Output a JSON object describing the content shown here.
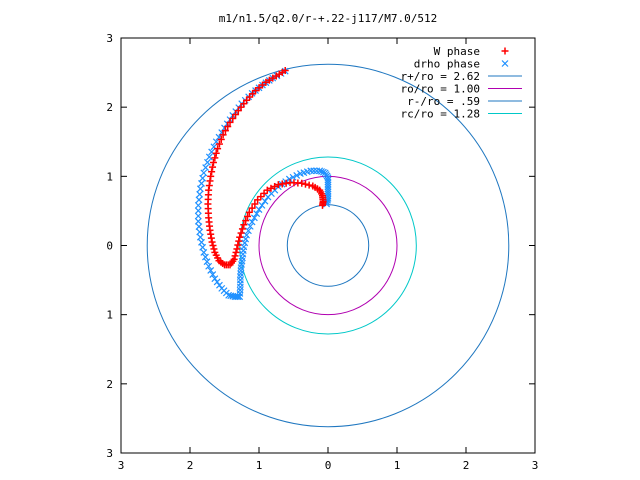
{
  "chart_data": {
    "type": "scatter",
    "title": "m1/n1.5/q2.0/r-+.22-j117/M7.0/512",
    "xlabel": "",
    "ylabel": "",
    "xlim": [
      -3,
      3
    ],
    "ylim": [
      -3,
      3
    ],
    "x_ticks": [
      "3",
      "2",
      "1",
      "0",
      "1",
      "2",
      "3"
    ],
    "y_ticks": [
      "3",
      "2",
      "1",
      "0",
      "1",
      "2",
      "3"
    ],
    "x_tick_values": [
      -3,
      -2,
      -1,
      0,
      1,
      2,
      3
    ],
    "y_tick_values": [
      3,
      2,
      1,
      0,
      -1,
      -2,
      -3
    ],
    "grid": false,
    "legend_position": "top-right",
    "series": [
      {
        "name": "W phase",
        "kind": "points",
        "marker": "plus",
        "color": "#ff0000",
        "points": [
          [
            -0.62,
            2.53
          ],
          [
            -0.75,
            2.45
          ],
          [
            -0.9,
            2.36
          ],
          [
            -1.05,
            2.24
          ],
          [
            -1.18,
            2.1
          ],
          [
            -1.3,
            1.95
          ],
          [
            -1.42,
            1.78
          ],
          [
            -1.52,
            1.6
          ],
          [
            -1.6,
            1.4
          ],
          [
            -1.66,
            1.2
          ],
          [
            -1.7,
            1.0
          ],
          [
            -1.73,
            0.8
          ],
          [
            -1.74,
            0.6
          ],
          [
            -1.73,
            0.4
          ],
          [
            -1.71,
            0.22
          ],
          [
            -1.68,
            0.05
          ],
          [
            -1.64,
            -0.1
          ],
          [
            -1.58,
            -0.22
          ],
          [
            -1.5,
            -0.28
          ],
          [
            -1.42,
            -0.28
          ],
          [
            -1.36,
            -0.2
          ],
          [
            -1.32,
            -0.05
          ],
          [
            -1.28,
            0.12
          ],
          [
            -1.22,
            0.3
          ],
          [
            -1.14,
            0.48
          ],
          [
            -1.02,
            0.66
          ],
          [
            -0.88,
            0.8
          ],
          [
            -0.72,
            0.88
          ],
          [
            -0.55,
            0.91
          ],
          [
            -0.38,
            0.9
          ],
          [
            -0.22,
            0.86
          ],
          [
            -0.12,
            0.8
          ],
          [
            -0.08,
            0.72
          ],
          [
            -0.07,
            0.64
          ],
          [
            -0.08,
            0.58
          ]
        ]
      },
      {
        "name": "drho phase",
        "kind": "points",
        "marker": "cross",
        "color": "#1e90ff",
        "points": [
          [
            -0.62,
            2.52
          ],
          [
            -0.8,
            2.42
          ],
          [
            -0.95,
            2.32
          ],
          [
            -1.1,
            2.2
          ],
          [
            -1.25,
            2.05
          ],
          [
            -1.38,
            1.88
          ],
          [
            -1.5,
            1.7
          ],
          [
            -1.62,
            1.5
          ],
          [
            -1.72,
            1.28
          ],
          [
            -1.8,
            1.05
          ],
          [
            -1.85,
            0.82
          ],
          [
            -1.88,
            0.58
          ],
          [
            -1.88,
            0.35
          ],
          [
            -1.85,
            0.12
          ],
          [
            -1.8,
            -0.1
          ],
          [
            -1.73,
            -0.3
          ],
          [
            -1.64,
            -0.48
          ],
          [
            -1.54,
            -0.62
          ],
          [
            -1.44,
            -0.72
          ],
          [
            -1.35,
            -0.74
          ],
          [
            -1.28,
            -0.74
          ],
          [
            -1.27,
            -0.6
          ],
          [
            -1.27,
            -0.45
          ],
          [
            -1.26,
            -0.32
          ],
          [
            -1.24,
            -0.18
          ],
          [
            -1.22,
            -0.02
          ],
          [
            -1.18,
            0.15
          ],
          [
            -1.1,
            0.34
          ],
          [
            -1.0,
            0.52
          ],
          [
            -0.87,
            0.7
          ],
          [
            -0.72,
            0.85
          ],
          [
            -0.56,
            0.96
          ],
          [
            -0.4,
            1.04
          ],
          [
            -0.25,
            1.08
          ],
          [
            -0.12,
            1.08
          ],
          [
            -0.04,
            1.05
          ],
          [
            0.0,
            0.98
          ],
          [
            0.0,
            0.88
          ],
          [
            0.0,
            0.78
          ],
          [
            0.0,
            0.68
          ],
          [
            -0.02,
            0.6
          ]
        ]
      },
      {
        "name": "r+/ro = 2.62",
        "kind": "circle",
        "radius": 2.62,
        "color": "#1f77c0"
      },
      {
        "name": "ro/ro = 1.00",
        "kind": "circle",
        "radius": 1.0,
        "color": "#b000b0"
      },
      {
        "name": "r-/ro = .59",
        "kind": "circle",
        "radius": 0.59,
        "color": "#1f77c0"
      },
      {
        "name": "rc/ro = 1.28",
        "kind": "circle",
        "radius": 1.28,
        "color": "#00c8c8"
      }
    ]
  }
}
